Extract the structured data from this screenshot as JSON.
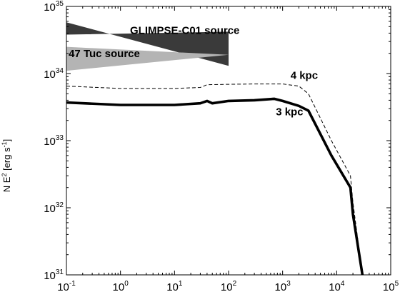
{
  "chart_data": {
    "type": "line",
    "title": "",
    "xlabel": "",
    "ylabel": "N E",
    "ylabel_sup": "2",
    "ylabel_units": " [erg s",
    "ylabel_units_sup": "-1",
    "ylabel_close": "]",
    "x_scale": "log",
    "y_scale": "log",
    "xlim": [
      0.1,
      100000
    ],
    "ylim": [
      1e+31,
      1e+35
    ],
    "x_ticks": [
      {
        "value": 0.1,
        "base": "10",
        "exp": "-1"
      },
      {
        "value": 1,
        "base": "10",
        "exp": "0"
      },
      {
        "value": 10,
        "base": "10",
        "exp": "1"
      },
      {
        "value": 100,
        "base": "10",
        "exp": "2"
      },
      {
        "value": 1000,
        "base": "10",
        "exp": "3"
      },
      {
        "value": 10000,
        "base": "10",
        "exp": "4"
      },
      {
        "value": 100000,
        "base": "10",
        "exp": "5"
      }
    ],
    "y_ticks": [
      {
        "value": 1e+31,
        "base": "10",
        "exp": "31"
      },
      {
        "value": 1e+32,
        "base": "10",
        "exp": "32"
      },
      {
        "value": 1e+33,
        "base": "10",
        "exp": "33"
      },
      {
        "value": 1e+34,
        "base": "10",
        "exp": "34"
      },
      {
        "value": 1e+35,
        "base": "10",
        "exp": "35"
      }
    ],
    "series": [
      {
        "label": "3 kpc",
        "style": "solid-thick",
        "x": [
          0.1,
          1,
          10,
          30,
          40,
          50,
          100,
          300,
          700,
          1000,
          2000,
          3000,
          8000,
          18000,
          20000,
          30000
        ],
        "y": [
          3.7e+33,
          3.4e+33,
          3.4e+33,
          3.6e+33,
          3.9e+33,
          3.6e+33,
          3.9e+33,
          4e+33,
          4.2e+33,
          3.9e+33,
          3.3e+33,
          2.8e+33,
          6e+32,
          2e+32,
          8e+31,
          1e+31
        ]
      },
      {
        "label": "4 kpc",
        "style": "dashed",
        "x": [
          0.1,
          1,
          10,
          30,
          40,
          100,
          300,
          1000,
          2000,
          3000,
          8000,
          18000,
          20000,
          30000
        ],
        "y": [
          6.5e+33,
          6e+33,
          6e+33,
          6.2e+33,
          6.8e+33,
          6.9e+33,
          7e+33,
          7e+33,
          6.5e+33,
          5e+33,
          1e+33,
          3e+32,
          1.2e+32,
          1e+31
        ]
      }
    ],
    "bands": [
      {
        "label": "GLIMPSE-C01 source",
        "color": "#3a3a3a",
        "polygon": [
          [
            0.1,
            5.8e+34
          ],
          [
            100,
            1.3e+34
          ],
          [
            100,
            4.2e+34
          ],
          [
            0.1,
            3.8e+34
          ]
        ]
      },
      {
        "label": "47 Tuc source",
        "color": "#b4b4b4",
        "polygon": [
          [
            0.1,
            1.1e+34
          ],
          [
            100,
            1.9e+34
          ],
          [
            100,
            1.9e+34
          ],
          [
            0.1,
            2.5e+34
          ]
        ]
      }
    ],
    "annotations": [
      {
        "text": "GLIMPSE-C01 source",
        "x": 1.5,
        "y": 3.9e+34
      },
      {
        "text": "47 Tuc source",
        "x": 0.11,
        "y": 1.75e+34
      },
      {
        "text": "4 kpc",
        "x": 1400,
        "y": 8.3e+33
      },
      {
        "text": "3 kpc",
        "x": 750,
        "y": 2.4e+33
      }
    ],
    "grid": false
  }
}
